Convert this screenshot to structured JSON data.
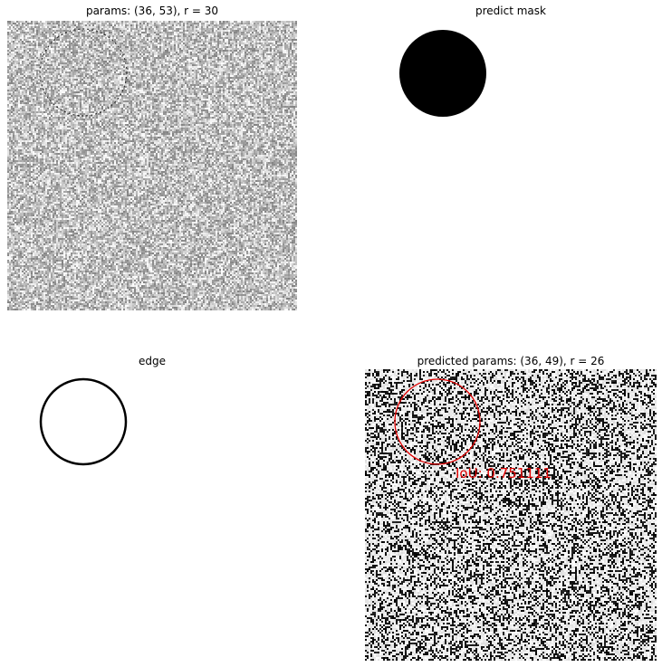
{
  "panels": {
    "top_left": {
      "title": "params: (36, 53), r = 30"
    },
    "top_right": {
      "title": "predict mask"
    },
    "bottom_left": {
      "title": "edge"
    },
    "bottom_right": {
      "title": "predicted params: (36, 49), r = 26",
      "iou_label": "IoU: 0.751111"
    }
  },
  "colors": {
    "prediction_circle": "#e00000",
    "mask_fill": "#000000",
    "edge_stroke": "#000000",
    "background": "#ffffff"
  }
}
